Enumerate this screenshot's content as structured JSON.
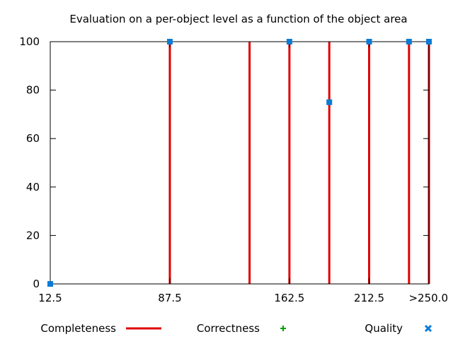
{
  "chart_data": {
    "type": "scatter",
    "title": "Evaluation on a per-object level as a function of the object area",
    "xlabel": "",
    "ylabel": "",
    "x_ticks": [
      {
        "value": 12.5,
        "label": "12.5"
      },
      {
        "value": 87.5,
        "label": "87.5"
      },
      {
        "value": 162.5,
        "label": "162.5"
      },
      {
        "value": 212.5,
        "label": "212.5"
      },
      {
        "value": 250.0,
        "label": ">250.0"
      }
    ],
    "y_ticks": [
      0,
      20,
      40,
      60,
      80,
      100
    ],
    "xlim": [
      12.5,
      250.0
    ],
    "ylim": [
      0,
      100
    ],
    "grid": false,
    "legend_position": "bottom",
    "series": [
      {
        "name": "Completeness",
        "style": "impulses",
        "color": "#e00000",
        "x": [
          87.5,
          137.5,
          162.5,
          187.5,
          212.5,
          237.5,
          250.0
        ],
        "y": [
          100,
          100,
          100,
          100,
          100,
          100,
          100
        ]
      },
      {
        "name": "Correctness",
        "style": "points",
        "marker": "plus",
        "color": "#00a000",
        "x": [],
        "y": []
      },
      {
        "name": "Quality",
        "style": "points",
        "marker": "square",
        "color": "#0a7bd6",
        "x": [
          12.5,
          87.5,
          162.5,
          187.5,
          212.5,
          237.5,
          250.0
        ],
        "y": [
          0,
          100,
          100,
          75,
          100,
          100,
          100
        ]
      }
    ]
  }
}
